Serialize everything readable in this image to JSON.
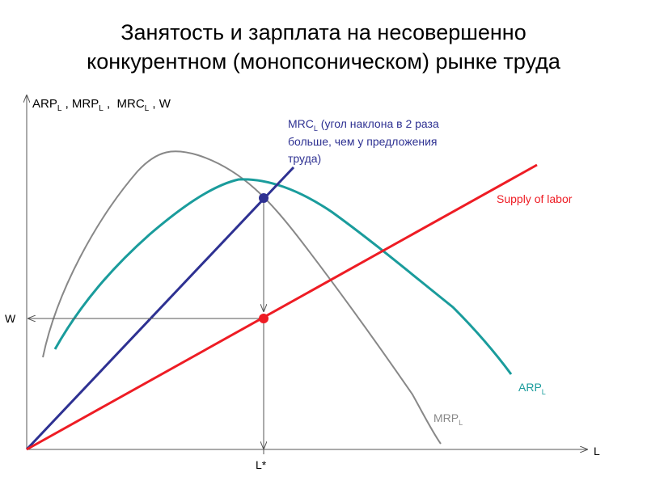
{
  "title": {
    "line1": "Занятость и зарплата на несовершенно",
    "line2": "конкурентном (монопсоническом) рынке труда"
  },
  "axes": {
    "y_label": {
      "arp": "ARP",
      "arp_sub": "L",
      "sep1": " , ",
      "mrp": "MRP",
      "mrp_sub": "L",
      "sep2": " ,  ",
      "mrc": "MRC",
      "mrc_sub": "L",
      "sep3": " , W"
    },
    "x_label": "L",
    "w_label": "W",
    "lstar_label": "L*"
  },
  "curves": {
    "mrc": {
      "name": "MRC",
      "sub": "L",
      "note_line1": "(угол наклона в 2 раза",
      "note_line2": "больше, чем у предложения",
      "note_line3": "труда)",
      "color": "#2e3192"
    },
    "supply": {
      "name": "Supply of labor",
      "color": "#ee1c24"
    },
    "arp": {
      "name": "ARP",
      "sub": "L",
      "color": "#1a9c9c"
    },
    "mrp": {
      "name": "MRP",
      "sub": "L",
      "color": "#888888"
    }
  }
}
